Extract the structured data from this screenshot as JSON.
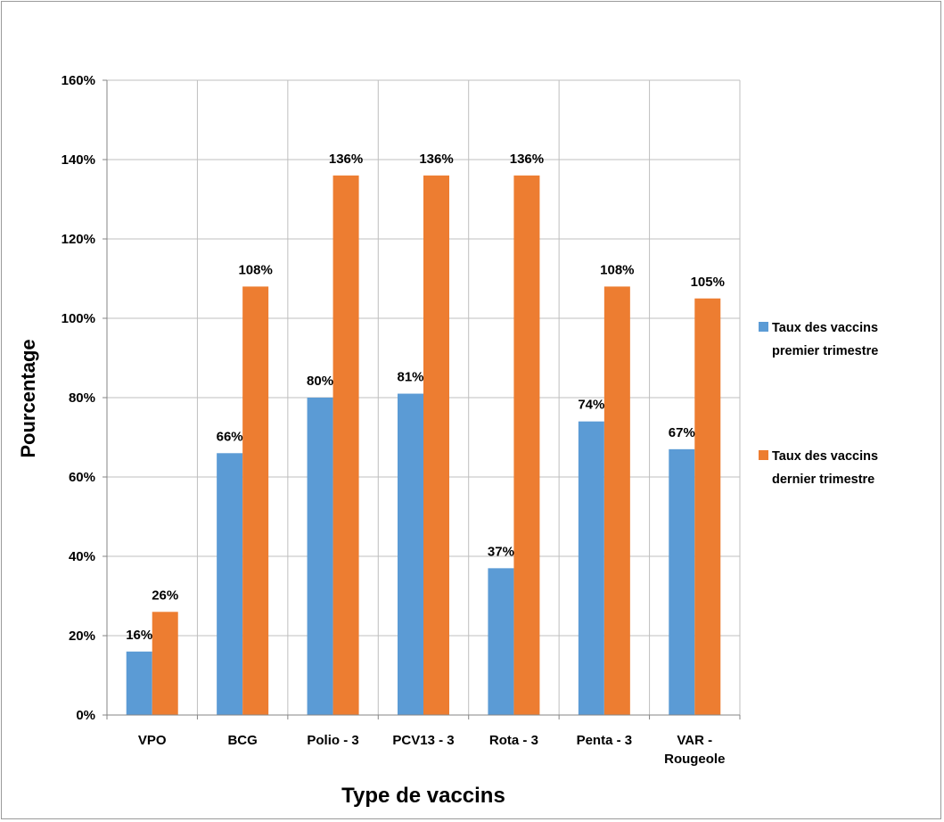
{
  "chart_data": {
    "type": "bar",
    "title": "",
    "xlabel": "Type de vaccins",
    "ylabel": "Pourcentage",
    "categories": [
      [
        "VPO"
      ],
      [
        "BCG"
      ],
      [
        "Polio - 3"
      ],
      [
        "PCV13 - 3"
      ],
      [
        "Rota - 3"
      ],
      [
        "Penta - 3"
      ],
      [
        "VAR -",
        "Rougeole"
      ]
    ],
    "ylim": [
      0,
      160
    ],
    "yticks": [
      0,
      20,
      40,
      60,
      80,
      100,
      120,
      140,
      160
    ],
    "ytick_labels": [
      "0%",
      "20%",
      "40%",
      "60%",
      "80%",
      "100%",
      "120%",
      "140%",
      "160%"
    ],
    "grid": true,
    "legend_position": "right",
    "series": [
      {
        "name": [
          "Taux des vaccins",
          "premier trimestre"
        ],
        "color": "#5B9BD5",
        "values": [
          16,
          66,
          80,
          81,
          37,
          74,
          67
        ],
        "labels": [
          "16%",
          "66%",
          "80%",
          "81%",
          "37%",
          "74%",
          "67%"
        ]
      },
      {
        "name": [
          "Taux des vaccins",
          "dernier trimestre"
        ],
        "color": "#ED7D31",
        "values": [
          26,
          108,
          136,
          136,
          136,
          108,
          105
        ],
        "labels": [
          "26%",
          "108%",
          "136%",
          "136%",
          "136%",
          "108%",
          "105%"
        ]
      }
    ]
  }
}
